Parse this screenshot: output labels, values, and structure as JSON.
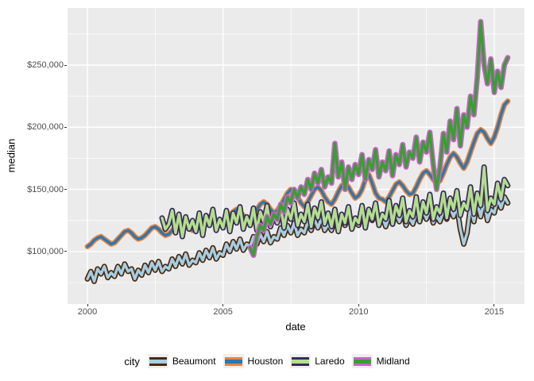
{
  "y_axis": {
    "title": "median",
    "ticks": [
      "$250,000",
      "$200,000",
      "$150,000",
      "$100,000"
    ]
  },
  "x_axis": {
    "title": "date",
    "ticks": [
      "2000",
      "2005",
      "2010",
      "2015"
    ]
  },
  "legend": {
    "title": "city",
    "items": [
      {
        "label": "Beaumont"
      },
      {
        "label": "Houston"
      },
      {
        "label": "Laredo"
      },
      {
        "label": "Midland"
      }
    ]
  },
  "colors": {
    "panel_background": "#EBEBEB",
    "gridline": "#FFFFFF",
    "axis_text": "#4D4D4D",
    "tick_mark": "#333333",
    "legend_key_background": "#EFEFEF"
  },
  "chart_data": {
    "type": "line",
    "title": "",
    "xlabel": "date",
    "ylabel": "median",
    "x_major": [
      2000,
      2005,
      2010,
      2015
    ],
    "x_minor": [
      2002.5,
      2007.5,
      2012.5
    ],
    "y_major_k": [
      250,
      200,
      150,
      100
    ],
    "y_minor_k": [
      275,
      225,
      175,
      125,
      75
    ],
    "xlim": [
      1999.27,
      2016.12
    ],
    "ylim_k": [
      58,
      296
    ],
    "y_units": "USD (thousands)",
    "x_units": "decimal year, monthly-resolution series sampled every 1.5 months",
    "series": [
      {
        "name": "Beaumont",
        "fill": "#A6CEE3",
        "outline": "#4A2A10",
        "start": 2000.0,
        "step": 0.125,
        "values_k": [
          78,
          84,
          76,
          86,
          82,
          88,
          79,
          83,
          80,
          88,
          82,
          90,
          84,
          86,
          78,
          85,
          81,
          89,
          83,
          91,
          85,
          92,
          84,
          88,
          86,
          94,
          88,
          96,
          90,
          98,
          89,
          93,
          91,
          99,
          93,
          101,
          95,
          103,
          94,
          99,
          97,
          106,
          100,
          108,
          102,
          110,
          101,
          106,
          104,
          112,
          106,
          114,
          108,
          116,
          107,
          112,
          110,
          119,
          113,
          121,
          115,
          123,
          113,
          118,
          115,
          124,
          117,
          126,
          119,
          127,
          117,
          122,
          117,
          126,
          119,
          128,
          121,
          129,
          119,
          124,
          121,
          130,
          123,
          132,
          125,
          133,
          122,
          128,
          120,
          129,
          122,
          131,
          124,
          132,
          121,
          127,
          122,
          131,
          124,
          133,
          126,
          134,
          123,
          129,
          124,
          133,
          126,
          135,
          128,
          136,
          118,
          106,
          115,
          136,
          124,
          139,
          128,
          141,
          125,
          134,
          131,
          142,
          135,
          144,
          139
        ]
      },
      {
        "name": "Houston",
        "fill": "#2C76B4",
        "outline": "#E8853D",
        "start": 2000.0,
        "step": 0.125,
        "values_k": [
          104,
          106,
          109,
          111,
          112,
          110,
          108,
          106,
          107,
          110,
          113,
          116,
          117,
          115,
          112,
          110,
          111,
          113,
          116,
          119,
          120,
          118,
          115,
          113,
          114,
          117,
          120,
          123,
          124,
          122,
          119,
          117,
          118,
          121,
          124,
          127,
          128,
          126,
          123,
          121,
          122,
          125,
          129,
          132,
          134,
          132,
          129,
          126,
          127,
          130,
          134,
          138,
          140,
          138,
          134,
          131,
          133,
          137,
          142,
          147,
          150,
          148,
          144,
          139,
          136,
          140,
          145,
          150,
          152,
          149,
          144,
          140,
          138,
          142,
          148,
          153,
          155,
          152,
          147,
          143,
          145,
          150,
          158,
          162,
          155,
          147,
          143,
          142,
          140,
          144,
          149,
          154,
          156,
          153,
          149,
          146,
          147,
          152,
          158,
          163,
          165,
          162,
          158,
          155,
          157,
          163,
          170,
          176,
          179,
          176,
          171,
          167,
          172,
          180,
          188,
          195,
          198,
          196,
          191,
          187,
          192,
          200,
          210,
          218,
          221
        ]
      },
      {
        "name": "Laredo",
        "fill": "#B2DF8A",
        "outline": "#3A2A5E",
        "start": 2002.75,
        "step": 0.125,
        "values_k": [
          127,
          118,
          122,
          133,
          115,
          130,
          112,
          128,
          118,
          125,
          116,
          131,
          113,
          129,
          121,
          134,
          117,
          126,
          119,
          133,
          116,
          131,
          123,
          136,
          118,
          128,
          121,
          135,
          117,
          132,
          124,
          137,
          120,
          129,
          123,
          137,
          119,
          134,
          126,
          139,
          121,
          130,
          124,
          138,
          120,
          135,
          127,
          140,
          122,
          131,
          120,
          134,
          116,
          130,
          123,
          136,
          118,
          127,
          123,
          137,
          119,
          134,
          126,
          139,
          121,
          130,
          126,
          141,
          122,
          137,
          129,
          143,
          124,
          133,
          128,
          144,
          124,
          140,
          131,
          146,
          126,
          136,
          131,
          147,
          127,
          143,
          134,
          149,
          129,
          139,
          134,
          152,
          130,
          147,
          137,
          168,
          133,
          143,
          138,
          155,
          142,
          158,
          153
        ]
      },
      {
        "name": "Midland",
        "fill": "#35A12F",
        "outline": "#CF5FD0",
        "start": 2006.0,
        "step": 0.125,
        "values_k": [
          103,
          97,
          112,
          121,
          117,
          128,
          122,
          130,
          126,
          138,
          132,
          144,
          139,
          150,
          143,
          152,
          146,
          158,
          150,
          163,
          155,
          166,
          152,
          160,
          155,
          187,
          160,
          172,
          150,
          168,
          158,
          170,
          162,
          178,
          158,
          174,
          166,
          182,
          160,
          172,
          165,
          181,
          161,
          178,
          170,
          186,
          168,
          180,
          175,
          192,
          172,
          188,
          180,
          196,
          170,
          150,
          168,
          195,
          180,
          205,
          190,
          215,
          185,
          210,
          200,
          225,
          210,
          240,
          285,
          250,
          235,
          255,
          228,
          245,
          232,
          250,
          256
        ]
      }
    ]
  }
}
